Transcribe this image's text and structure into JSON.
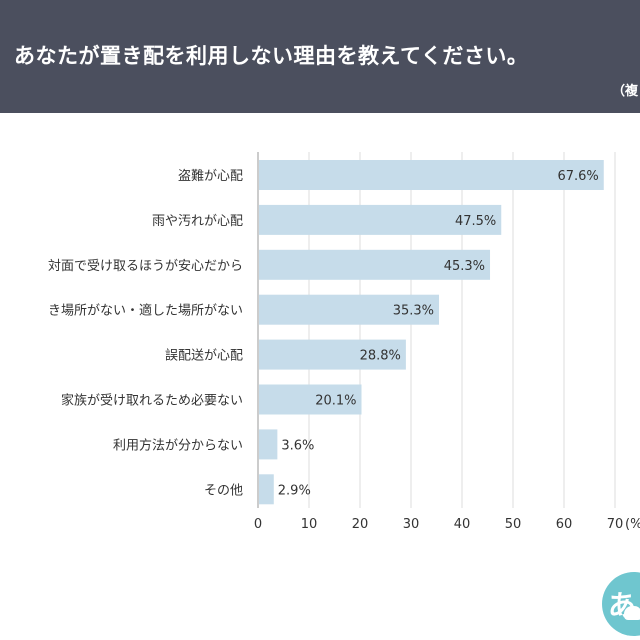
{
  "header": {
    "title": "あなたが置き配を利用しない理由を教えてください。",
    "note": "（複"
  },
  "logo": {
    "text": "あ",
    "icon": "logo-mascot-icon"
  },
  "colors": {
    "header_bg": "#4b4f5e",
    "bar": "#c6dcea",
    "text": "#333333",
    "grid": "#dcdcdc"
  },
  "chart_data": {
    "type": "bar",
    "orientation": "horizontal",
    "categories": [
      "盗難が心配",
      "雨や汚れが心配",
      "対面で受け取るほうが安心だから",
      "き場所がない・適した場所がない",
      "誤配送が心配",
      "家族が受け取れるため必要ない",
      "利用方法が分からない",
      "その他"
    ],
    "values": [
      67.6,
      47.5,
      45.3,
      35.3,
      28.8,
      20.1,
      3.6,
      2.9
    ],
    "value_labels": [
      "67.6%",
      "47.5%",
      "45.3%",
      "35.3%",
      "28.8%",
      "20.1%",
      "3.6%",
      "2.9%"
    ],
    "xlim": [
      0,
      70
    ],
    "xticks": [
      0,
      10,
      20,
      30,
      40,
      50,
      60,
      70
    ],
    "xtick_labels": [
      "0",
      "10",
      "20",
      "30",
      "40",
      "50",
      "60",
      "70"
    ],
    "x_unit_label": "(%",
    "grid": true
  }
}
